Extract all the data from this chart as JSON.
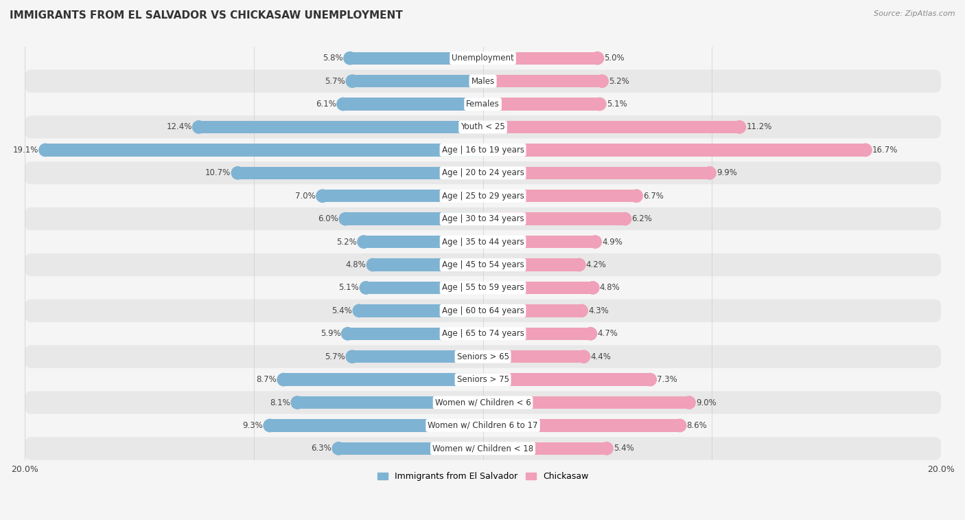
{
  "title": "IMMIGRANTS FROM EL SALVADOR VS CHICKASAW UNEMPLOYMENT",
  "source": "Source: ZipAtlas.com",
  "categories": [
    "Unemployment",
    "Males",
    "Females",
    "Youth < 25",
    "Age | 16 to 19 years",
    "Age | 20 to 24 years",
    "Age | 25 to 29 years",
    "Age | 30 to 34 years",
    "Age | 35 to 44 years",
    "Age | 45 to 54 years",
    "Age | 55 to 59 years",
    "Age | 60 to 64 years",
    "Age | 65 to 74 years",
    "Seniors > 65",
    "Seniors > 75",
    "Women w/ Children < 6",
    "Women w/ Children 6 to 17",
    "Women w/ Children < 18"
  ],
  "left_values": [
    5.8,
    5.7,
    6.1,
    12.4,
    19.1,
    10.7,
    7.0,
    6.0,
    5.2,
    4.8,
    5.1,
    5.4,
    5.9,
    5.7,
    8.7,
    8.1,
    9.3,
    6.3
  ],
  "right_values": [
    5.0,
    5.2,
    5.1,
    11.2,
    16.7,
    9.9,
    6.7,
    6.2,
    4.9,
    4.2,
    4.8,
    4.3,
    4.7,
    4.4,
    7.3,
    9.0,
    8.6,
    5.4
  ],
  "left_color": "#7fb3d3",
  "right_color": "#f0a0b8",
  "left_label": "Immigrants from El Salvador",
  "right_label": "Chickasaw",
  "xlim": 20.0,
  "bar_height": 0.55,
  "row_light_color": "#f5f5f5",
  "row_dark_color": "#e8e8e8",
  "fig_bg": "#f5f5f5",
  "title_fontsize": 11,
  "source_fontsize": 8,
  "label_fontsize": 8.5,
  "value_fontsize": 8.5
}
